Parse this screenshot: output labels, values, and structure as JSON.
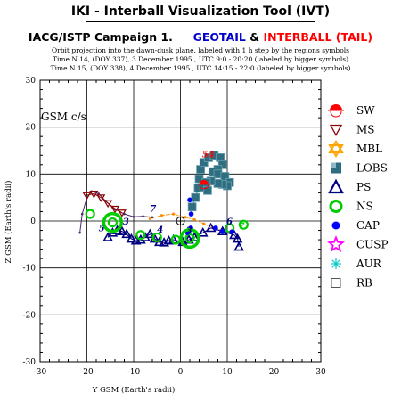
{
  "header": {
    "app_title": "IKI - Interball Visualization Tool (IVT)",
    "campaign_prefix": "IACG/ISTP Campaign 1.",
    "sc1": "GEOTAIL",
    "amp": "&",
    "sc2": "INTERBALL (TAIL)",
    "line1": "Orbit projection into the dawn-dusk plane. labeled with 1 h step by the regions symbols",
    "line2": "Time N 14, (DOY 337), 3 December 1995 ,  UTC 9:0 - 20:20 (labeled by bigger symbols)",
    "line3": "Time N 15, (DOY 338), 4 December 1995 ,  UTC 14:15 - 22:0 (labeled by bigger symbols)",
    "colors": {
      "sc1": "#0000cc",
      "sc2": "#ff0000",
      "orbit1": "#ff8c00",
      "orbit2": "#4b2a6e"
    }
  },
  "chart_data": {
    "type": "scatter",
    "frame_label": "GSM c/s",
    "xlabel": "Y GSM (Earth's radii)",
    "ylabel": "Z GSM (Earth's radii)",
    "xlim": [
      -30,
      30
    ],
    "ylim": [
      -30,
      30
    ],
    "xticks": [
      "-30",
      "-20",
      "-10",
      "0",
      "10",
      "20",
      "30"
    ],
    "yticks": [
      "-30",
      "-20",
      "-10",
      "0",
      "10",
      "20",
      "30"
    ],
    "grid": true,
    "legend_position": "right",
    "legend": [
      {
        "label": "SW",
        "icon": "half-circle-icon",
        "color": "#ff0000"
      },
      {
        "label": "MS",
        "icon": "triangle-down-icon",
        "color": "#8b0000"
      },
      {
        "label": "MBL",
        "icon": "star-of-david-icon",
        "color": "#ffa500"
      },
      {
        "label": "LOBS",
        "icon": "square-icon",
        "color": "#2e6e80"
      },
      {
        "label": "PS",
        "icon": "triangle-up-icon",
        "color": "#000080"
      },
      {
        "label": "NS",
        "icon": "ring-icon",
        "color": "#00cc00"
      },
      {
        "label": "CAP",
        "icon": "dot-icon",
        "color": "#0000ff"
      },
      {
        "label": "CUSP",
        "icon": "star-icon",
        "color": "#ff00ff"
      },
      {
        "label": "AUR",
        "icon": "asterisk-icon",
        "color": "#00cccc"
      },
      {
        "label": "RB",
        "icon": "open-square-icon",
        "color": "#555555"
      }
    ],
    "series": [
      {
        "region": "orbit1",
        "points": [
          [
            -6.5,
            0.5
          ],
          [
            -4,
            1.2
          ],
          [
            -1.5,
            1.5
          ],
          [
            1,
            0.8
          ],
          [
            3,
            0.3
          ],
          [
            5,
            -0.6
          ],
          [
            7,
            -1.5
          ],
          [
            9,
            -2.0
          ],
          [
            11,
            -2.3
          ]
        ]
      },
      {
        "region": "orbit2",
        "points": [
          [
            -21.5,
            -2.5
          ],
          [
            -21,
            1.5
          ],
          [
            -20,
            5
          ],
          [
            -19,
            6.3
          ],
          [
            -17.5,
            5.8
          ],
          [
            -16,
            4.3
          ],
          [
            -14,
            2.5
          ],
          [
            -12,
            1.5
          ],
          [
            -10,
            0.9
          ],
          [
            -8,
            1.0
          ],
          [
            -6,
            0.8
          ]
        ]
      },
      {
        "region": "PS",
        "points": [
          [
            -15.5,
            -3.5
          ],
          [
            -14.5,
            -2.5
          ],
          [
            -13.5,
            -2
          ],
          [
            -12.5,
            -2.2
          ],
          [
            -11.5,
            -2.8
          ],
          [
            -10.5,
            -3.8
          ],
          [
            -9.5,
            -4.2
          ],
          [
            -8.5,
            -4
          ],
          [
            -7.5,
            -3.5
          ],
          [
            -6.5,
            -2.8
          ],
          [
            -5.5,
            -3.8
          ],
          [
            -4.5,
            -4.5
          ],
          [
            -3.5,
            -4.6
          ],
          [
            -2.5,
            -4.2
          ],
          [
            -1.5,
            -4.0
          ],
          [
            0.5,
            -4.5
          ],
          [
            1.8,
            -4.0
          ],
          [
            3,
            -3.5
          ],
          [
            4.8,
            -2.5
          ],
          [
            6.5,
            -1.5
          ],
          [
            9,
            -2.2
          ],
          [
            11.5,
            -3
          ],
          [
            12.2,
            -3.8
          ],
          [
            12.5,
            -5.5
          ]
        ]
      },
      {
        "region": "LOBS",
        "points": [
          [
            2.5,
            3
          ],
          [
            3.2,
            5
          ],
          [
            3.8,
            7
          ],
          [
            4,
            9
          ],
          [
            4.3,
            11
          ],
          [
            5,
            12.5
          ],
          [
            6,
            13.5
          ],
          [
            7.2,
            14
          ],
          [
            8.5,
            13.5
          ],
          [
            9,
            12
          ],
          [
            8,
            11
          ],
          [
            7,
            10.5
          ],
          [
            8,
            10
          ],
          [
            9.5,
            9.5
          ],
          [
            10.5,
            8.2
          ],
          [
            10,
            7.5
          ],
          [
            9,
            7.8
          ],
          [
            8,
            8
          ],
          [
            6.5,
            8.5
          ],
          [
            5.5,
            8.2
          ],
          [
            5,
            7.2
          ],
          [
            5.8,
            6.5
          ]
        ]
      },
      {
        "region": "MS",
        "points": [
          [
            -20,
            5.5
          ],
          [
            -18.5,
            5.8
          ],
          [
            -17,
            5
          ],
          [
            -15.5,
            3.8
          ],
          [
            -14,
            2.6
          ],
          [
            -12.5,
            1.8
          ]
        ]
      },
      {
        "region": "NS",
        "points": [
          [
            -19.3,
            1.5
          ],
          [
            -14.5,
            -0.3
          ],
          [
            -8.5,
            -3
          ],
          [
            -5,
            -3.5
          ],
          [
            -1,
            -4
          ],
          [
            2,
            -3.7
          ],
          [
            10.5,
            -1.5
          ],
          [
            13.5,
            -0.8
          ]
        ]
      },
      {
        "region": "CAP",
        "points": [
          [
            2,
            4.5
          ],
          [
            2.3,
            1.5
          ],
          [
            2.2,
            -1.5
          ],
          [
            1.5,
            -2.5
          ],
          [
            7.5,
            -1.5
          ],
          [
            9,
            -2.2
          ],
          [
            11,
            -2.3
          ]
        ]
      },
      {
        "region": "SW",
        "points": [
          [
            5,
            7.8
          ]
        ]
      }
    ],
    "big_markers": [
      {
        "region": "NS",
        "points": [
          [
            -14.5,
            -0.3
          ],
          [
            2,
            -3.7
          ]
        ]
      }
    ],
    "annotations": [
      {
        "text": "54",
        "x": 4.6,
        "y": 13.6,
        "color": "#ff0000"
      },
      {
        "text": "7",
        "x": -6.5,
        "y": 2.0,
        "color": "#000080"
      },
      {
        "text": "5",
        "x": -17.5,
        "y": -2.2,
        "color": "#000080"
      },
      {
        "text": "4",
        "x": -5,
        "y": -2.5,
        "color": "#000080"
      },
      {
        "text": "3",
        "x": 1.2,
        "y": -2.7,
        "color": "#000080"
      },
      {
        "text": "6",
        "x": 9.8,
        "y": -0.8,
        "color": "#000080"
      },
      {
        "text": "7",
        "x": 12.4,
        "y": -1.7,
        "color": "#00cc00"
      },
      {
        "text": "3",
        "x": -12.3,
        "y": -0.8,
        "color": "#000080"
      }
    ]
  }
}
